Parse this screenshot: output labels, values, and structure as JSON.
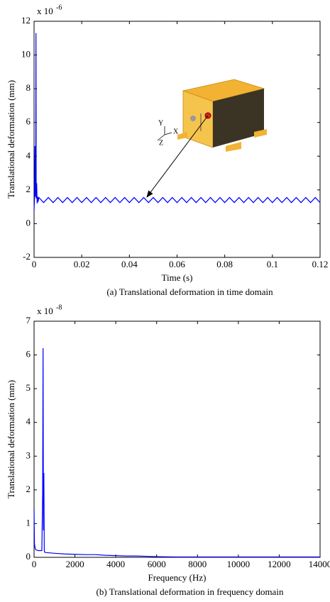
{
  "chart_data": [
    {
      "type": "line",
      "y_multiplier": {
        "base": "x 10",
        "exponent": "-6"
      },
      "x_label": "Time (s)",
      "y_label": "Translational deformation (mm)",
      "caption": "(a)  Translational deformation in time domain",
      "inset_axis_labels": [
        "Y",
        "X",
        "Z"
      ],
      "xlim": [
        0,
        0.12
      ],
      "xticks": [
        0,
        0.02,
        0.04,
        0.06,
        0.08,
        0.1,
        0.12
      ],
      "ylim": [
        -2,
        12
      ],
      "yticks": [
        -2,
        0,
        2,
        4,
        6,
        8,
        10,
        12
      ],
      "grid": false,
      "x": [
        0,
        0.0002,
        0.0004,
        0.0005,
        0.0007,
        0.0008,
        0.0009,
        0.0011,
        0.0013,
        0.0015,
        0.0017,
        0.002,
        0.004,
        0.006,
        0.008,
        0.01,
        0.012,
        0.014,
        0.016,
        0.018,
        0.02,
        0.022,
        0.024,
        0.026,
        0.028,
        0.03,
        0.032,
        0.034,
        0.036,
        0.038,
        0.04,
        0.042,
        0.044,
        0.046,
        0.048,
        0.05,
        0.052,
        0.054,
        0.056,
        0.058,
        0.06,
        0.062,
        0.064,
        0.066,
        0.068,
        0.07,
        0.072,
        0.074,
        0.076,
        0.078,
        0.08,
        0.082,
        0.084,
        0.086,
        0.088,
        0.09,
        0.092,
        0.094,
        0.096,
        0.098,
        0.1,
        0.102,
        0.104,
        0.106,
        0.108,
        0.11,
        0.112,
        0.114,
        0.116,
        0.118,
        0.12
      ],
      "series": [
        {
          "color": "#0000ff",
          "values": [
            0.8,
            1.5,
            4.6,
            1.6,
            3.0,
            11.3,
            1.5,
            2.4,
            1.2,
            1.6,
            1.3,
            1.55,
            1.25,
            1.55,
            1.25,
            1.55,
            1.25,
            1.55,
            1.25,
            1.55,
            1.25,
            1.55,
            1.25,
            1.55,
            1.25,
            1.55,
            1.25,
            1.55,
            1.25,
            1.55,
            1.25,
            1.55,
            1.25,
            1.55,
            1.25,
            1.55,
            1.25,
            1.55,
            1.25,
            1.55,
            1.25,
            1.55,
            1.25,
            1.55,
            1.25,
            1.55,
            1.25,
            1.55,
            1.25,
            1.55,
            1.25,
            1.55,
            1.25,
            1.55,
            1.25,
            1.55,
            1.25,
            1.55,
            1.25,
            1.55,
            1.25,
            1.55,
            1.25,
            1.55,
            1.25,
            1.55,
            1.25,
            1.55,
            1.25,
            1.55,
            1.25
          ]
        }
      ]
    },
    {
      "type": "line",
      "y_multiplier": {
        "base": "x 10",
        "exponent": "-8"
      },
      "x_label": "Frequency (Hz)",
      "y_label": "Translational deformation (mm)",
      "caption": "(b)  Translational deformation in frequency domain",
      "xlim": [
        0,
        14000
      ],
      "xticks": [
        0,
        2000,
        4000,
        6000,
        8000,
        10000,
        12000,
        14000
      ],
      "ylim": [
        0,
        7
      ],
      "yticks": [
        0,
        1,
        2,
        3,
        4,
        5,
        6,
        7
      ],
      "grid": false,
      "x": [
        0,
        20,
        60,
        100,
        200,
        300,
        380,
        420,
        440,
        460,
        480,
        500,
        520,
        600,
        800,
        1000,
        1500,
        2000,
        2500,
        3000,
        3500,
        4000,
        4500,
        5000,
        5500,
        6000,
        7000,
        8000,
        10000,
        12000,
        14000
      ],
      "series": [
        {
          "color": "#0000ff",
          "values": [
            1.4,
            0.4,
            0.25,
            0.22,
            0.2,
            0.2,
            0.2,
            1.9,
            6.2,
            0.8,
            2.5,
            0.2,
            0.15,
            0.14,
            0.13,
            0.12,
            0.1,
            0.09,
            0.08,
            0.08,
            0.06,
            0.05,
            0.04,
            0.04,
            0.03,
            0.02,
            0.01,
            0.01,
            0.01,
            0.01,
            0.01
          ]
        }
      ]
    }
  ]
}
